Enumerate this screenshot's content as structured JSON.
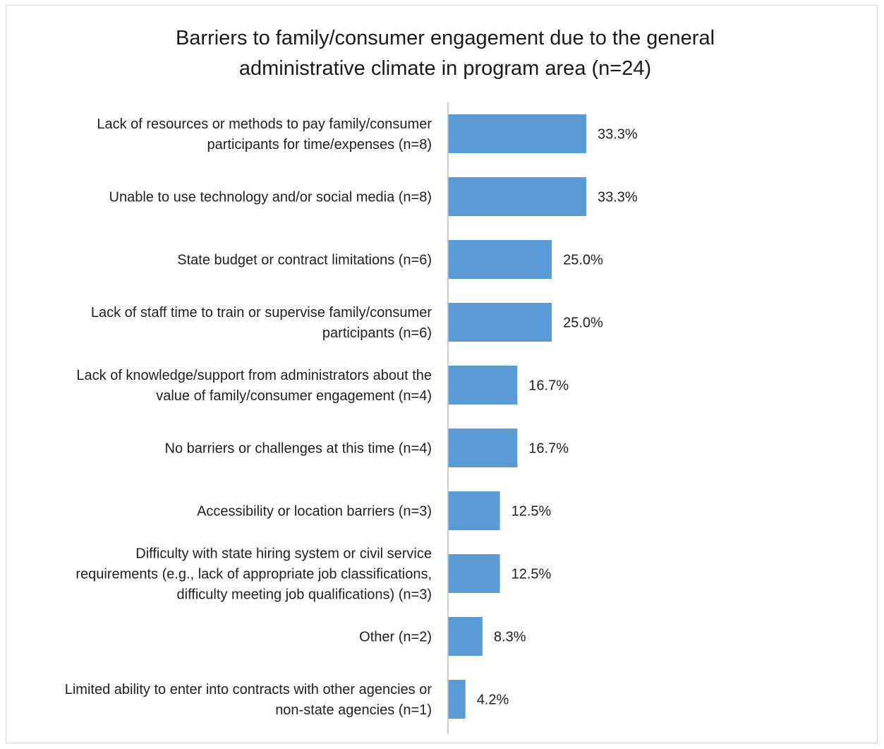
{
  "chart_data": {
    "type": "bar",
    "orientation": "horizontal",
    "title_lines": [
      "Barriers to family/consumer engagement due to the general",
      "administrative climate in program area (n=24)"
    ],
    "categories": [
      [
        "Lack of resources or methods to pay family/consumer",
        "participants for time/expenses (n=8)"
      ],
      [
        "Unable to use technology and/or social media (n=8)"
      ],
      [
        "State budget or contract limitations (n=6)"
      ],
      [
        "Lack of staff time to train or supervise family/consumer",
        "participants (n=6)"
      ],
      [
        "Lack of knowledge/support from administrators about the",
        "value of family/consumer engagement (n=4)"
      ],
      [
        "No barriers or challenges at this time (n=4)"
      ],
      [
        "Accessibility or location barriers (n=3)"
      ],
      [
        "Difficulty with state hiring system or civil service",
        "requirements (e.g., lack of appropriate job classifications,",
        "difficulty meeting job qualifications) (n=3)"
      ],
      [
        "Other (n=2)"
      ],
      [
        "Limited ability to enter into contracts with other agencies or",
        "non-state agencies (n=1)"
      ]
    ],
    "values": [
      33.3,
      33.3,
      25.0,
      25.0,
      16.7,
      16.7,
      12.5,
      12.5,
      8.3,
      4.2
    ],
    "data_labels": [
      "33.3%",
      "33.3%",
      "25.0%",
      "25.0%",
      "16.7%",
      "16.7%",
      "12.5%",
      "12.5%",
      "8.3%",
      "4.2%"
    ],
    "xlim": [
      0,
      100
    ],
    "grid": false,
    "bar_color": "#5b9bd5",
    "axis_color": "#bfbfbf"
  }
}
